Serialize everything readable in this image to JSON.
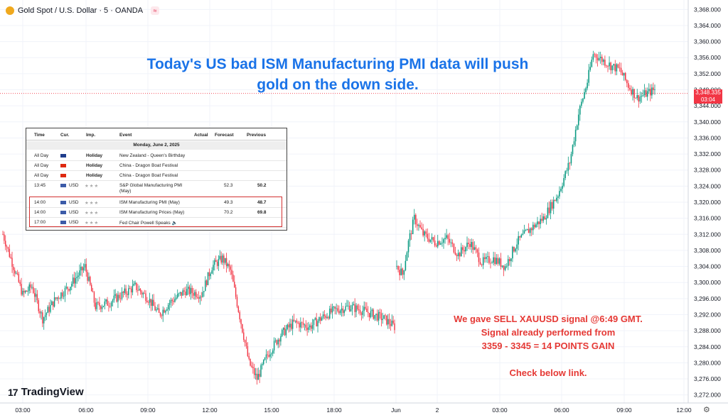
{
  "header": {
    "title": "Gold Spot / U.S. Dollar · 5 · OANDA",
    "symbol_icon": "gold-coin-icon",
    "compare_icon": "approx-icon"
  },
  "headline": {
    "line1": "Today's US bad ISM Manufacturing PMI data will push",
    "line2": "gold on the down side."
  },
  "note": {
    "line1": "We gave SELL XAUUSD signal @6:49 GMT.",
    "line2": "Signal already performed from",
    "line3": "3359 - 3345 = 14 POINTS GAIN",
    "line4": "Check below link."
  },
  "logo": {
    "text": "TradingView",
    "mark": "17"
  },
  "price_label": {
    "price": "3,348.335",
    "countdown": "03:04"
  },
  "colors": {
    "up": "#089981",
    "down": "#f23645",
    "grid": "#f0f3fa",
    "headline": "#1a73e8",
    "note": "#e53935"
  },
  "calendar": {
    "headers": [
      "Time",
      "Cur.",
      "Imp.",
      "Event",
      "Actual",
      "Forecast",
      "Previous"
    ],
    "date": "Monday, June 2, 2025",
    "rows": [
      {
        "time": "All Day",
        "flag": "nz",
        "cur": "",
        "imp": "Holiday",
        "event": "New Zealand - Queen's Birthday",
        "actual": "",
        "forecast": "",
        "previous": ""
      },
      {
        "time": "All Day",
        "flag": "cn",
        "cur": "",
        "imp": "Holiday",
        "event": "China - Dragon Boat Festival",
        "actual": "",
        "forecast": "",
        "previous": ""
      },
      {
        "time": "All Day",
        "flag": "cn",
        "cur": "",
        "imp": "Holiday",
        "event": "China - Dragon Boat Festival",
        "actual": "",
        "forecast": "",
        "previous": ""
      },
      {
        "time": "13:45",
        "flag": "us",
        "cur": "USD",
        "imp": "★★★",
        "event": "S&P Global Manufacturing PMI",
        "event2": "(May)",
        "actual": "",
        "forecast": "52.3",
        "previous": "50.2"
      },
      {
        "time": "14:00",
        "flag": "us",
        "cur": "USD",
        "imp": "★★★",
        "event": "ISM Manufacturing PMI (May)",
        "actual": "",
        "forecast": "49.3",
        "previous": "48.7"
      },
      {
        "time": "14:00",
        "flag": "us",
        "cur": "USD",
        "imp": "★★★",
        "event": "ISM Manufacturing Prices (May)",
        "actual": "",
        "forecast": "70.2",
        "previous": "69.8"
      },
      {
        "time": "17:00",
        "flag": "us",
        "cur": "USD",
        "imp": "★★★",
        "event": "Fed Chair Powell Speaks 🔈",
        "actual": "",
        "forecast": "",
        "previous": ""
      }
    ]
  },
  "chart_data": {
    "type": "candlestick",
    "y_ticks": [
      "3,272.000",
      "3,276.000",
      "3,280.000",
      "3,284.000",
      "3,288.000",
      "3,292.000",
      "3,296.000",
      "3,300.000",
      "3,304.000",
      "3,308.000",
      "3,312.000",
      "3,316.000",
      "3,320.000",
      "3,324.000",
      "3,328.000",
      "3,332.000",
      "3,336.000",
      "3,340.000",
      "3,344.000",
      "3,348.000",
      "3,352.000",
      "3,356.000",
      "3,360.000",
      "3,364.000",
      "3,368.000"
    ],
    "ylim": [
      3270,
      3370
    ],
    "x_ticks": [
      "03:00",
      "06:00",
      "09:00",
      "12:00",
      "15:00",
      "18:00",
      "Jun",
      "2",
      "03:00",
      "06:00",
      "09:00",
      "12:00"
    ],
    "current_price": 3348.335,
    "anchors_day1": [
      [
        0,
        3312
      ],
      [
        8,
        3304
      ],
      [
        15,
        3297
      ],
      [
        22,
        3299
      ],
      [
        30,
        3291
      ],
      [
        40,
        3296
      ],
      [
        50,
        3299
      ],
      [
        62,
        3304
      ],
      [
        70,
        3294
      ],
      [
        80,
        3295
      ],
      [
        90,
        3297
      ],
      [
        100,
        3299
      ],
      [
        110,
        3296
      ],
      [
        118,
        3292
      ],
      [
        126,
        3295
      ],
      [
        138,
        3298
      ],
      [
        150,
        3297
      ],
      [
        158,
        3304
      ],
      [
        166,
        3306
      ],
      [
        172,
        3303
      ],
      [
        180,
        3290
      ],
      [
        186,
        3280
      ],
      [
        192,
        3276
      ],
      [
        200,
        3282
      ],
      [
        210,
        3287
      ],
      [
        220,
        3290
      ],
      [
        232,
        3289
      ],
      [
        240,
        3291
      ],
      [
        250,
        3293
      ],
      [
        262,
        3294
      ],
      [
        272,
        3293
      ],
      [
        280,
        3292
      ],
      [
        288,
        3291
      ],
      [
        296,
        3289
      ]
    ],
    "anchors_day2": [
      [
        0,
        3304
      ],
      [
        4,
        3302
      ],
      [
        8,
        3310
      ],
      [
        12,
        3316
      ],
      [
        18,
        3312
      ],
      [
        26,
        3310
      ],
      [
        34,
        3311
      ],
      [
        42,
        3307
      ],
      [
        50,
        3310
      ],
      [
        58,
        3305
      ],
      [
        66,
        3306
      ],
      [
        74,
        3304
      ],
      [
        82,
        3310
      ],
      [
        90,
        3313
      ],
      [
        100,
        3316
      ],
      [
        110,
        3322
      ],
      [
        118,
        3330
      ],
      [
        124,
        3342
      ],
      [
        130,
        3350
      ],
      [
        134,
        3357
      ],
      [
        138,
        3356
      ],
      [
        146,
        3354
      ],
      [
        152,
        3353
      ],
      [
        158,
        3349
      ],
      [
        164,
        3346
      ],
      [
        170,
        3347
      ],
      [
        176,
        3348
      ]
    ]
  }
}
